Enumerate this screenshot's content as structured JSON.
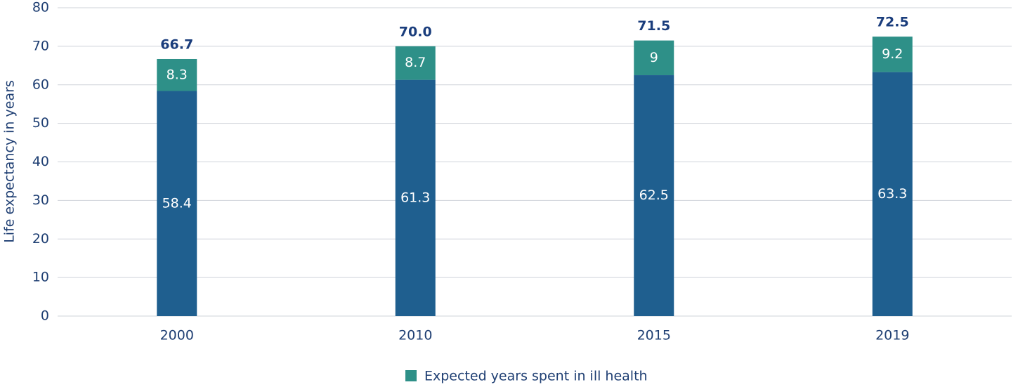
{
  "chart_data": {
    "type": "bar",
    "stacked": true,
    "y_label": "Life expectancy in years",
    "categories": [
      "2000",
      "2010",
      "2015",
      "2019"
    ],
    "series": [
      {
        "color": "#1f5f8f",
        "values": [
          58.4,
          61.3,
          62.5,
          63.3
        ]
      },
      {
        "name": "Expected years spent in ill health",
        "color": "#2e9088",
        "values": [
          8.3,
          8.7,
          9,
          9.2
        ]
      }
    ],
    "totals": {
      "values": [
        66.7,
        70,
        71.5,
        72.5
      ],
      "value_labels": [
        "66.7",
        "70.0",
        "71.5",
        "72.5"
      ]
    },
    "ylim": [
      0,
      80
    ],
    "yticks": [
      0,
      10,
      20,
      30,
      40,
      50,
      60,
      70,
      80
    ],
    "grid": true,
    "legend": "bottom"
  }
}
